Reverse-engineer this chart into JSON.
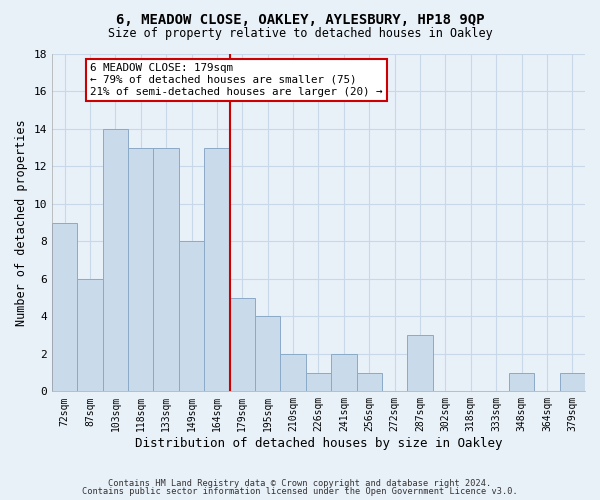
{
  "title": "6, MEADOW CLOSE, OAKLEY, AYLESBURY, HP18 9QP",
  "subtitle": "Size of property relative to detached houses in Oakley",
  "xlabel": "Distribution of detached houses by size in Oakley",
  "ylabel": "Number of detached properties",
  "bar_labels": [
    "72sqm",
    "87sqm",
    "103sqm",
    "118sqm",
    "133sqm",
    "149sqm",
    "164sqm",
    "179sqm",
    "195sqm",
    "210sqm",
    "226sqm",
    "241sqm",
    "256sqm",
    "272sqm",
    "287sqm",
    "302sqm",
    "318sqm",
    "333sqm",
    "348sqm",
    "364sqm",
    "379sqm"
  ],
  "bar_values": [
    9,
    6,
    14,
    13,
    13,
    8,
    13,
    5,
    4,
    2,
    1,
    2,
    1,
    0,
    3,
    0,
    0,
    0,
    1,
    0,
    1
  ],
  "bar_color": "#c9daea",
  "bar_edge_color": "#8baac8",
  "vline_pos": 7,
  "vline_color": "#cc0000",
  "annotation_text": "6 MEADOW CLOSE: 179sqm\n← 79% of detached houses are smaller (75)\n21% of semi-detached houses are larger (20) →",
  "annotation_box_color": "#ffffff",
  "annotation_box_edge": "#cc0000",
  "grid_color": "#c8d8e8",
  "background_color": "#e8f0f8",
  "ylim": [
    0,
    18
  ],
  "yticks": [
    0,
    2,
    4,
    6,
    8,
    10,
    12,
    14,
    16,
    18
  ],
  "footer_line1": "Contains HM Land Registry data © Crown copyright and database right 2024.",
  "footer_line2": "Contains public sector information licensed under the Open Government Licence v3.0."
}
